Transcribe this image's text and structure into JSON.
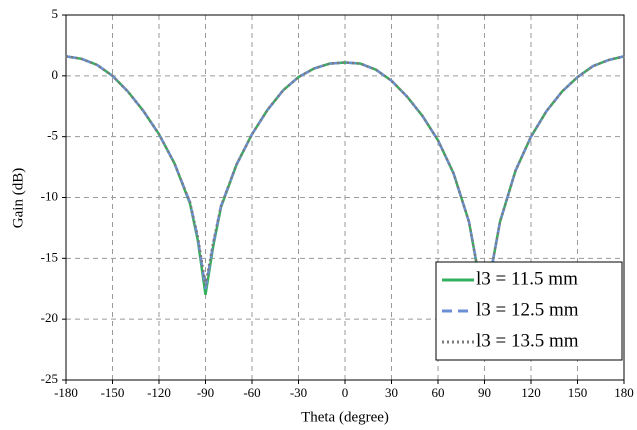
{
  "chart_data": {
    "type": "line",
    "x_label": "Theta (degree)",
    "y_label": "Gain (dB)",
    "x": [
      -180,
      -170,
      -160,
      -150,
      -140,
      -130,
      -120,
      -110,
      -100,
      -95,
      -90,
      -85,
      -80,
      -70,
      -60,
      -50,
      -40,
      -30,
      -20,
      -10,
      0,
      10,
      20,
      30,
      40,
      50,
      60,
      70,
      80,
      85,
      90,
      95,
      100,
      110,
      120,
      130,
      140,
      150,
      160,
      170,
      180
    ],
    "series": [
      {
        "name": "l3 = 11.5 mm",
        "color": "#34b15e",
        "dash": "solid",
        "values": [
          1.6,
          1.4,
          0.9,
          0.0,
          -1.3,
          -2.9,
          -4.8,
          -7.2,
          -10.5,
          -13.5,
          -18.0,
          -14.0,
          -10.8,
          -7.3,
          -4.8,
          -2.8,
          -1.2,
          -0.1,
          0.6,
          1.0,
          1.1,
          1.0,
          0.5,
          -0.4,
          -1.7,
          -3.3,
          -5.3,
          -8.0,
          -12.0,
          -15.5,
          -22.0,
          -15.5,
          -12.0,
          -7.8,
          -5.0,
          -2.9,
          -1.3,
          -0.1,
          0.8,
          1.3,
          1.6
        ]
      },
      {
        "name": "l3 = 12.5 mm",
        "color": "#6b8fd6",
        "dash": "dashed",
        "values": [
          1.6,
          1.4,
          0.9,
          0.0,
          -1.3,
          -2.9,
          -4.8,
          -7.2,
          -10.4,
          -13.3,
          -17.5,
          -13.8,
          -10.7,
          -7.3,
          -4.8,
          -2.8,
          -1.2,
          -0.1,
          0.6,
          1.0,
          1.1,
          1.0,
          0.5,
          -0.4,
          -1.7,
          -3.3,
          -5.3,
          -8.0,
          -12.0,
          -15.5,
          -22.0,
          -15.5,
          -12.0,
          -7.8,
          -5.0,
          -2.9,
          -1.3,
          -0.1,
          0.8,
          1.3,
          1.6
        ]
      },
      {
        "name": "l3 = 13.5 mm",
        "color": "#7a7a7a",
        "dash": "dotted",
        "values": [
          1.6,
          1.4,
          0.9,
          0.0,
          -1.3,
          -2.9,
          -4.8,
          -7.2,
          -10.4,
          -13.2,
          -17.2,
          -13.7,
          -10.7,
          -7.3,
          -4.8,
          -2.8,
          -1.2,
          -0.1,
          0.6,
          1.0,
          1.1,
          1.0,
          0.5,
          -0.4,
          -1.7,
          -3.3,
          -5.3,
          -8.0,
          -12.0,
          -15.5,
          -22.0,
          -15.5,
          -12.0,
          -7.8,
          -5.0,
          -2.9,
          -1.3,
          -0.1,
          0.8,
          1.3,
          1.6
        ]
      }
    ],
    "xlim": [
      -180,
      180
    ],
    "xticks": [
      -180,
      -150,
      -120,
      -90,
      -60,
      -30,
      0,
      30,
      60,
      90,
      120,
      150,
      180
    ],
    "ylim": [
      -25,
      5
    ],
    "yticks": [
      -25,
      -20,
      -15,
      -10,
      -5,
      0,
      5
    ],
    "grid": true,
    "legend": "lower-right"
  }
}
